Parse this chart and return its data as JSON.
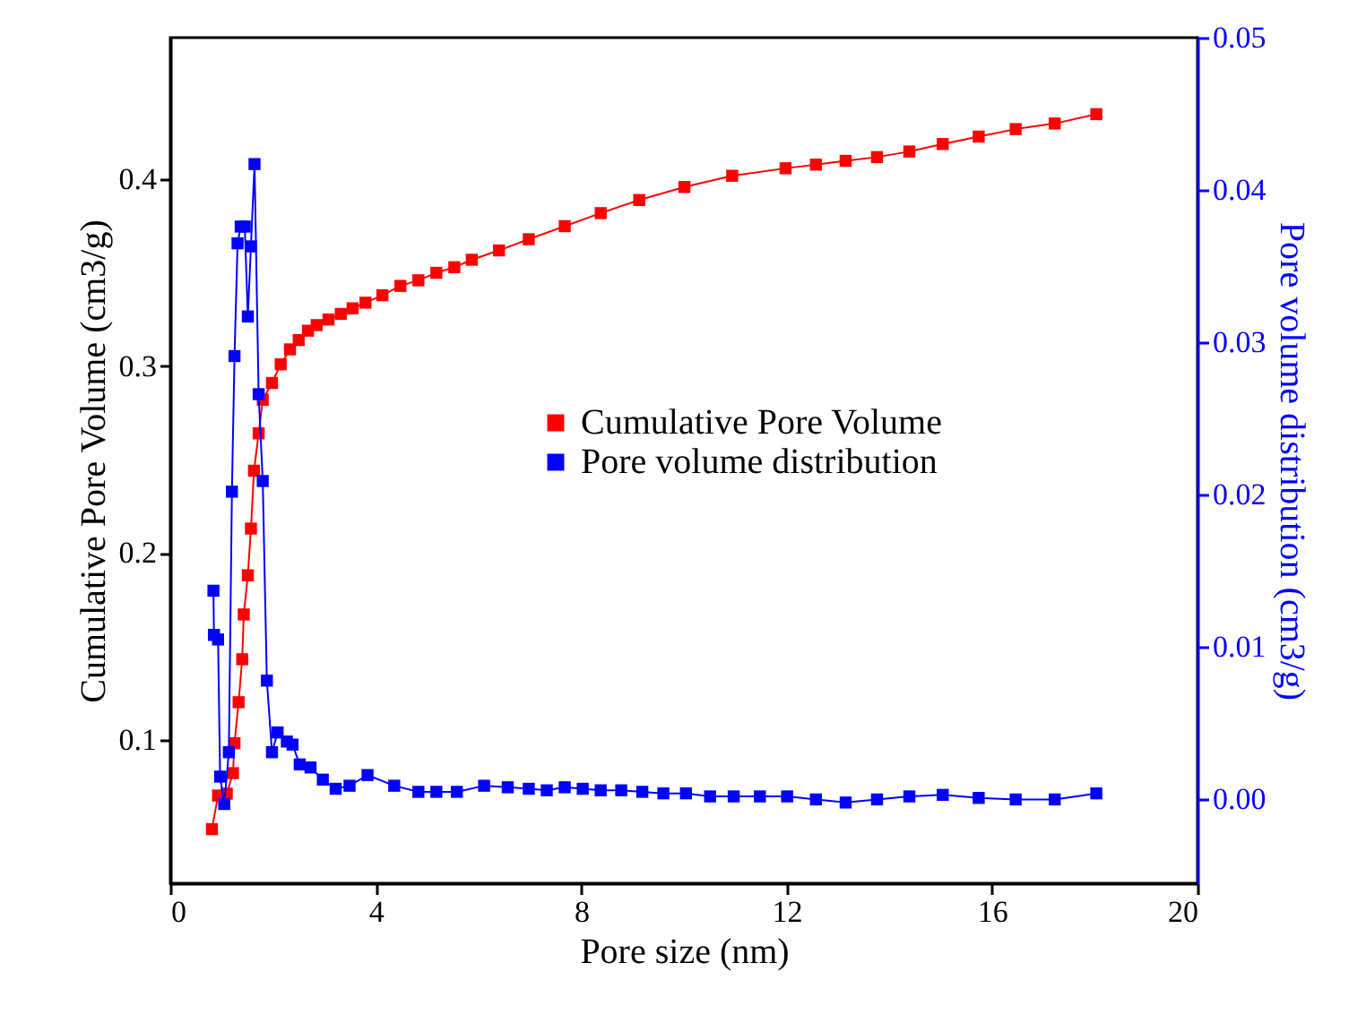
{
  "chart_data": {
    "type": "line",
    "xlabel": "Pore size (nm)",
    "ylabel": "Cumulative Pore Volume (cm3/g)",
    "y2label": "Pore volume distribution (cm3/g)",
    "xlim": [
      0,
      20
    ],
    "xticks": [
      0,
      4,
      8,
      12,
      16,
      20
    ],
    "ylim": [
      0.023,
      0.476
    ],
    "yticks": [
      0.1,
      0.2,
      0.3,
      0.4
    ],
    "y2lim": [
      -0.0055,
      0.05
    ],
    "y2ticks": [
      {
        "value": 0,
        "label": "0.00"
      },
      {
        "value": 0.01,
        "label": "0.01"
      },
      {
        "value": 0.02,
        "label": "0.02"
      },
      {
        "value": 0.03,
        "label": "0.03"
      },
      {
        "value": 0.04,
        "label": "0.04"
      },
      {
        "value": 0.05,
        "label": "0.05"
      }
    ],
    "marker": "square",
    "line_style": "solid",
    "legend": "right",
    "grid": false,
    "series": [
      {
        "name": "Cumulative Pore Volume",
        "color": "#ff0000",
        "x": [
          0.81,
          0.93,
          1.1,
          1.22,
          1.25,
          1.33,
          1.4,
          1.43,
          1.51,
          1.57,
          1.63,
          1.72,
          1.8,
          1.98,
          2.15,
          2.33,
          2.5,
          2.68,
          2.85,
          3.08,
          3.32,
          3.55,
          3.8,
          4.13,
          4.48,
          4.83,
          5.18,
          5.53,
          5.87,
          6.4,
          6.98,
          7.68,
          8.38,
          9.13,
          10.01,
          10.94,
          11.98,
          12.57,
          13.15,
          13.76,
          14.39,
          15.04,
          15.74,
          16.46,
          17.22,
          18.03
        ],
        "values": [
          0.052,
          0.07,
          0.071,
          0.082,
          0.098,
          0.12,
          0.143,
          0.167,
          0.188,
          0.213,
          0.244,
          0.264,
          0.282,
          0.291,
          0.301,
          0.309,
          0.314,
          0.319,
          0.322,
          0.325,
          0.328,
          0.331,
          0.334,
          0.338,
          0.343,
          0.346,
          0.35,
          0.353,
          0.357,
          0.362,
          0.368,
          0.375,
          0.382,
          0.389,
          0.396,
          0.402,
          0.406,
          0.408,
          0.41,
          0.412,
          0.415,
          0.419,
          0.423,
          0.427,
          0.43,
          0.435
        ]
      },
      {
        "name": "Pore volume distribution",
        "color": "#0000ff",
        "axis": "y2",
        "x": [
          0.84,
          0.85,
          0.93,
          0.97,
          1.05,
          1.14,
          1.2,
          1.25,
          1.31,
          1.37,
          1.45,
          1.51,
          1.57,
          1.64,
          1.72,
          1.8,
          1.88,
          1.98,
          2.09,
          2.27,
          2.38,
          2.52,
          2.73,
          2.97,
          3.22,
          3.49,
          3.84,
          4.36,
          4.83,
          5.18,
          5.58,
          6.11,
          6.57,
          6.98,
          7.33,
          7.68,
          8.03,
          8.38,
          8.78,
          9.19,
          9.6,
          10.04,
          10.51,
          10.97,
          11.48,
          12.01,
          12.57,
          13.15,
          13.76,
          14.39,
          15.04,
          15.74,
          16.46,
          17.22,
          18.03
        ],
        "values": [
          0.0137,
          0.0108,
          0.0105,
          0.0015,
          -0.0003,
          0.0031,
          0.0202,
          0.0291,
          0.0365,
          0.0376,
          0.0376,
          0.0317,
          0.0363,
          0.0417,
          0.0266,
          0.0209,
          0.0078,
          0.0031,
          0.0044,
          0.0038,
          0.0036,
          0.0023,
          0.0021,
          0.0013,
          0.0007,
          0.0009,
          0.0016,
          0.0009,
          0.0005,
          0.0005,
          0.0005,
          0.0009,
          0.0008,
          0.0007,
          0.0006,
          0.0008,
          0.0007,
          0.0006,
          0.0006,
          0.0005,
          0.0004,
          0.0004,
          0.0002,
          0.0002,
          0.0002,
          0.0002,
          0.0,
          -0.0002,
          0.0,
          0.0002,
          0.0003,
          0.0001,
          0.0,
          0.0,
          0.0004
        ]
      }
    ]
  }
}
